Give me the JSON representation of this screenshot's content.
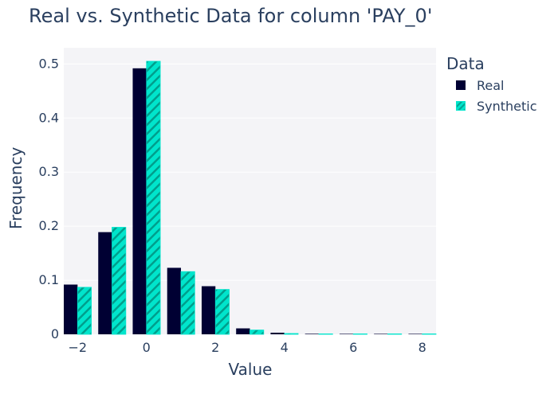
{
  "chart_data": {
    "type": "bar",
    "title": "Real vs. Synthetic Data for column 'PAY_0'",
    "xlabel": "Value",
    "ylabel": "Frequency",
    "x": [
      -2,
      -1,
      0,
      1,
      2,
      3,
      4,
      5,
      6,
      7,
      8
    ],
    "series": [
      {
        "name": "Real",
        "color": "#000033",
        "values": [
          0.092,
          0.189,
          0.492,
          0.123,
          0.089,
          0.011,
          0.003,
          0.001,
          0.0004,
          0.0003,
          0.0006
        ]
      },
      {
        "name": "Synthetic",
        "color": "#00e5cc",
        "values": [
          0.087,
          0.198,
          0.505,
          0.116,
          0.083,
          0.008,
          0.0015,
          0.0008,
          0.0003,
          0.0002,
          0.0003
        ]
      }
    ],
    "xlim": [
      -2.4,
      8.4
    ],
    "ylim": [
      0,
      0.53
    ],
    "xticks": [
      -2,
      0,
      2,
      4,
      6,
      8
    ],
    "xtick_labels": [
      "−2",
      "0",
      "2",
      "4",
      "6",
      "8"
    ],
    "yticks": [
      0,
      0.1,
      0.2,
      0.3,
      0.4,
      0.5
    ],
    "ytick_labels": [
      "0",
      "0.1",
      "0.2",
      "0.3",
      "0.4",
      "0.5"
    ],
    "grid": true,
    "legend_title": "Data",
    "legend_position": "top-right outside"
  }
}
